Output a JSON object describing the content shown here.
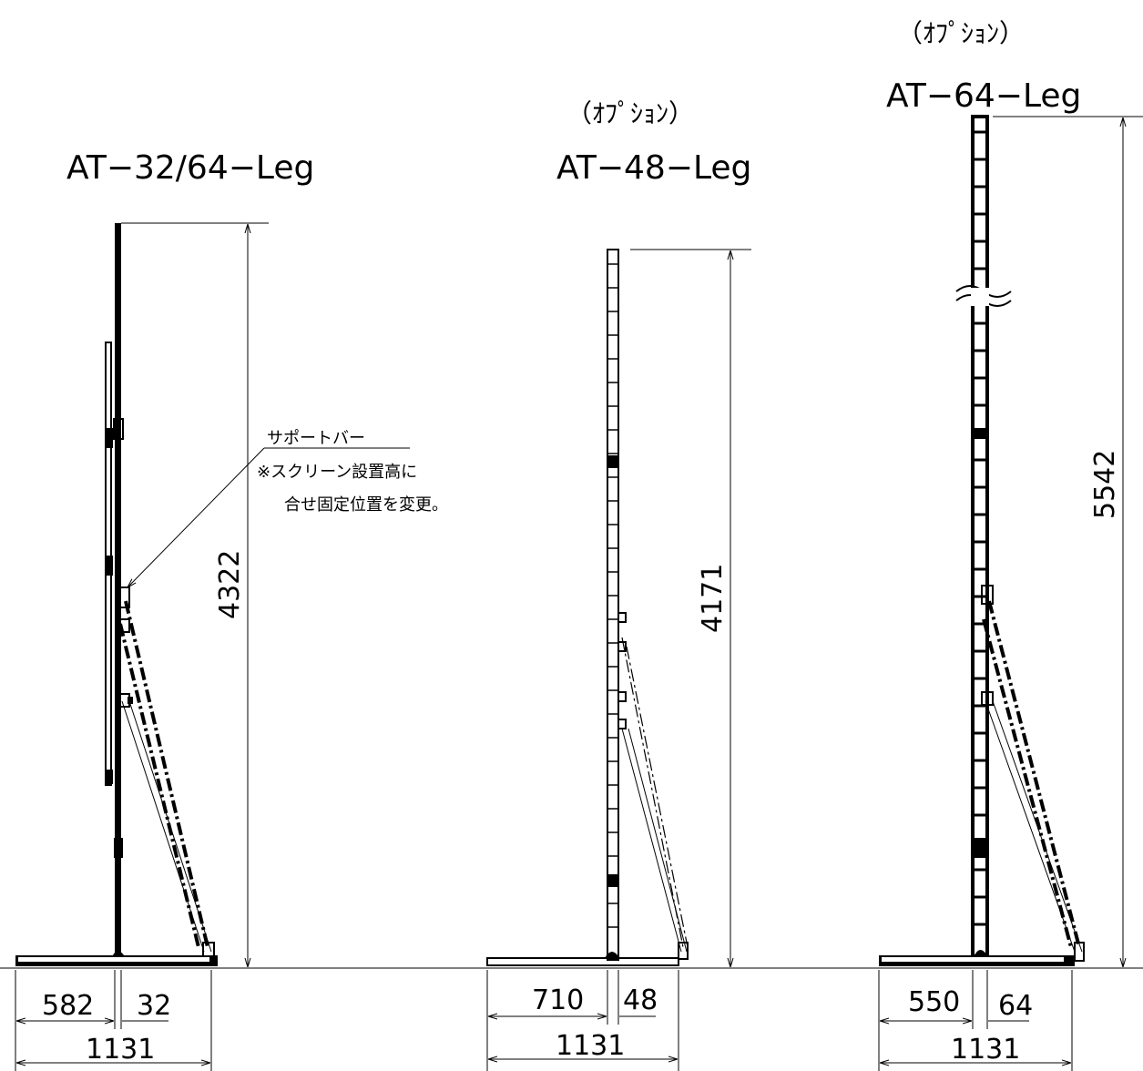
{
  "stands": [
    {
      "id": "at-32-64",
      "option_label": "",
      "title": "AT−32/64−Leg",
      "height": "4322",
      "left_dim": "582",
      "post_dim": "32",
      "total_dim": "1131"
    },
    {
      "id": "at-48",
      "option_label": "（ｵﾌﾟｼｮﾝ）",
      "title": "AT−48−Leg",
      "height": "4171",
      "left_dim": "710",
      "post_dim": "48",
      "total_dim": "1131"
    },
    {
      "id": "at-64",
      "option_label": "（ｵﾌﾟｼｮﾝ）",
      "title": "AT−64−Leg",
      "height": "5542",
      "left_dim": "550",
      "post_dim": "64",
      "total_dim": "1131"
    }
  ],
  "support_bar_note": {
    "line1": "サポートバー",
    "line2": "※スクリーン設置高に",
    "line3": "合せ固定位置を変更。"
  }
}
